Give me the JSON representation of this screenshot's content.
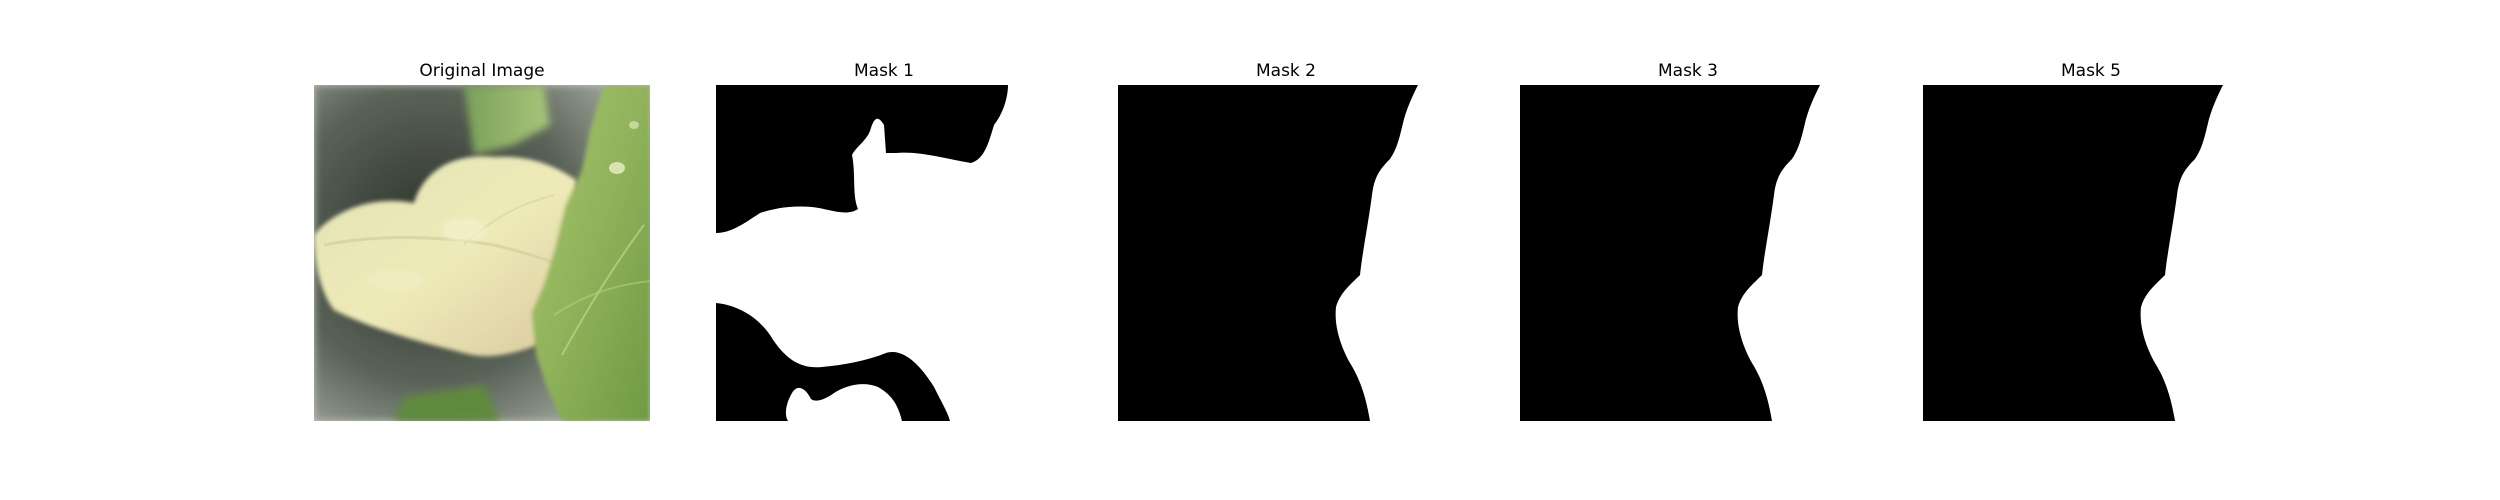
{
  "figure": {
    "panels": [
      {
        "title": "Original Image",
        "kind": "photo"
      },
      {
        "title": "Mask 1",
        "kind": "mask"
      },
      {
        "title": "Mask 2",
        "kind": "mask"
      },
      {
        "title": "Mask 3",
        "kind": "mask"
      },
      {
        "title": "Mask 5",
        "kind": "mask"
      }
    ],
    "colors": {
      "mask_foreground": "#ffffff",
      "mask_background": "#000000",
      "figure_background": "#ffffff"
    }
  }
}
